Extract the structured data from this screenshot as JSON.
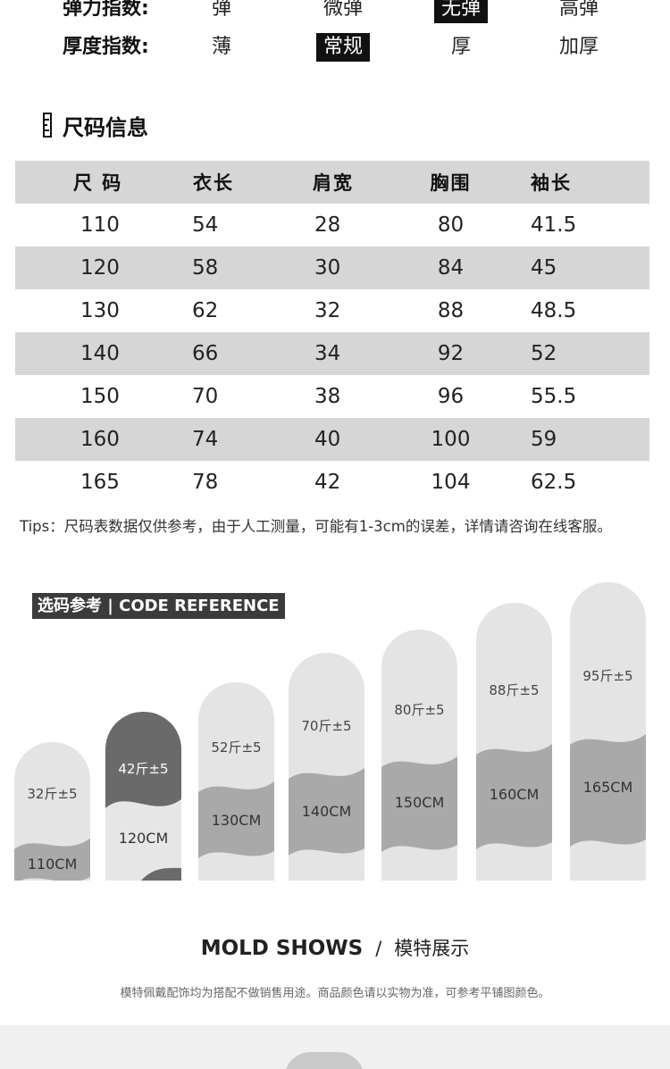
{
  "indices": [
    {
      "label": "弹力指数:",
      "options": [
        "弹",
        "微弹",
        "无弹",
        "高弹"
      ],
      "selected": 2
    },
    {
      "label": "厚度指数:",
      "options": [
        "薄",
        "常规",
        "厚",
        "加厚"
      ],
      "selected": 1
    }
  ],
  "size_section": {
    "title": "尺码信息",
    "headers": [
      "尺 码",
      "衣长",
      "肩宽",
      "胸围",
      "袖长"
    ],
    "rows": [
      [
        "110",
        "54",
        "28",
        "80",
        "41.5"
      ],
      [
        "120",
        "58",
        "30",
        "84",
        "45"
      ],
      [
        "130",
        "62",
        "32",
        "88",
        "48.5"
      ],
      [
        "140",
        "66",
        "34",
        "92",
        "52"
      ],
      [
        "150",
        "70",
        "38",
        "96",
        "55.5"
      ],
      [
        "160",
        "74",
        "40",
        "100",
        "59"
      ],
      [
        "165",
        "78",
        "42",
        "104",
        "62.5"
      ]
    ],
    "tips": "Tips：尺码表数据仅供参考，由于人工测量，可能有1-3cm的误差，详情请咨询在线客服。"
  },
  "code_reference": {
    "badge": "选码参考 | CODE REFERENCE",
    "columns": [
      {
        "weight": "32斤±5",
        "height": "110CM"
      },
      {
        "weight": "42斤±5",
        "height": "120CM"
      },
      {
        "weight": "52斤±5",
        "height": "130CM"
      },
      {
        "weight": "70斤±5",
        "height": "140CM"
      },
      {
        "weight": "80斤±5",
        "height": "150CM"
      },
      {
        "weight": "88斤±5",
        "height": "160CM"
      },
      {
        "weight": "95斤±5",
        "height": "165CM"
      }
    ],
    "highlighted": 1
  },
  "mold": {
    "title": "MOLD SHOWS",
    "separator": "/",
    "subtitle": "模特展示"
  },
  "note": "模特佩戴配饰均为搭配不做销售用途。商品颜色请以实物为准，可参考平铺图颜色。",
  "colors": {
    "dark": "#111111",
    "shade": "#d6d6d6",
    "band": "#a9a9a9",
    "highlight": "#5e5e5e"
  }
}
